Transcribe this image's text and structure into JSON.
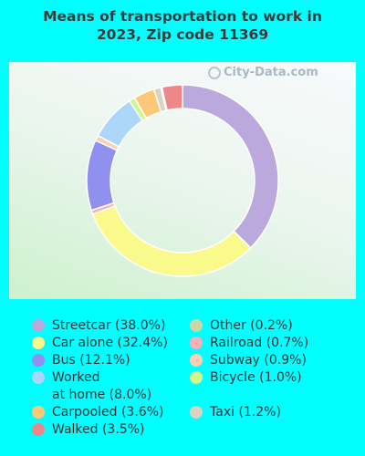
{
  "title_lines": [
    "Means of transportation to work in",
    "2023, Zip code 11369"
  ],
  "watermark": "City-Data.com",
  "chart_data": {
    "type": "pie",
    "title": "Means of transportation to work in 2023, Zip code 11369",
    "slices": [
      {
        "name": "Streetcar",
        "value": 38.0,
        "label": "Streetcar (38.0%)",
        "color": "#bba8dc"
      },
      {
        "name": "Car alone",
        "value": 32.4,
        "label": "Car alone (32.4%)",
        "color": "#fafa8c"
      },
      {
        "name": "Railroad",
        "value": 0.7,
        "label": "Railroad (0.7%)",
        "color": "#f5b0b8"
      },
      {
        "name": "Bus",
        "value": 12.1,
        "label": "Bus (12.1%)",
        "color": "#9090ee"
      },
      {
        "name": "Subway",
        "value": 0.9,
        "label": "Subway (0.9%)",
        "color": "#fcd0b0"
      },
      {
        "name": "Worked at home",
        "value": 8.0,
        "label": "Worked\nat home (8.0%)",
        "color": "#acd6fa"
      },
      {
        "name": "Bicycle",
        "value": 1.0,
        "label": "Bicycle (1.0%)",
        "color": "#cff88c"
      },
      {
        "name": "Carpooled",
        "value": 3.6,
        "label": "Carpooled (3.6%)",
        "color": "#fcc878"
      },
      {
        "name": "Taxi",
        "value": 1.2,
        "label": "Taxi (1.2%)",
        "color": "#d8d4c0"
      },
      {
        "name": "Other",
        "value": 0.2,
        "label": "Other (0.2%)",
        "color": "#c8d8a8"
      },
      {
        "name": "Walked",
        "value": 3.5,
        "label": "Walked (3.5%)",
        "color": "#ee8888"
      }
    ],
    "legend_order": [
      "Streetcar",
      "Car alone",
      "Bus",
      "Worked at home",
      "Carpooled",
      "Walked",
      "Other",
      "Railroad",
      "Subway",
      "Bicycle",
      "Taxi"
    ]
  }
}
